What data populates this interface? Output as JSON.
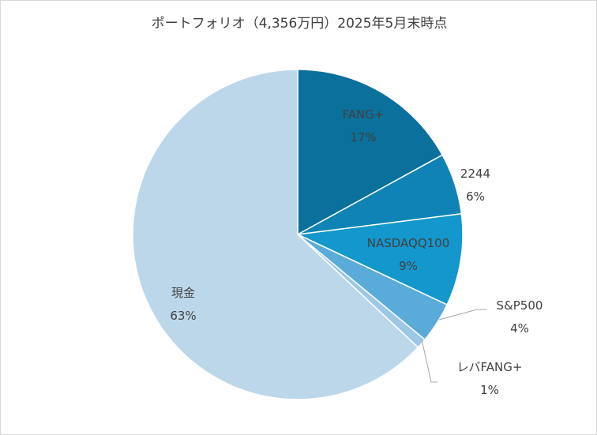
{
  "chart_data": {
    "type": "pie",
    "title": "ポートフォリオ（4,356万円）2025年5月末時点",
    "slices": [
      {
        "label": "FANG+",
        "value": 17,
        "display": "17%",
        "color": "#0b709b"
      },
      {
        "label": "2244",
        "value": 6,
        "display": "6%",
        "color": "#0f83b5"
      },
      {
        "label": "NASDAQQ100",
        "value": 9,
        "display": "9%",
        "color": "#1497cc"
      },
      {
        "label": "S&P500",
        "value": 4,
        "display": "4%",
        "color": "#5aabd9"
      },
      {
        "label": "レバFANG+",
        "value": 1,
        "display": "1%",
        "color": "#9dc7e6"
      },
      {
        "label": "現金",
        "value": 63,
        "display": "63%",
        "color": "#bdd7ea"
      }
    ],
    "start": "12 o'clock",
    "direction": "clockwise",
    "legend": "none"
  }
}
